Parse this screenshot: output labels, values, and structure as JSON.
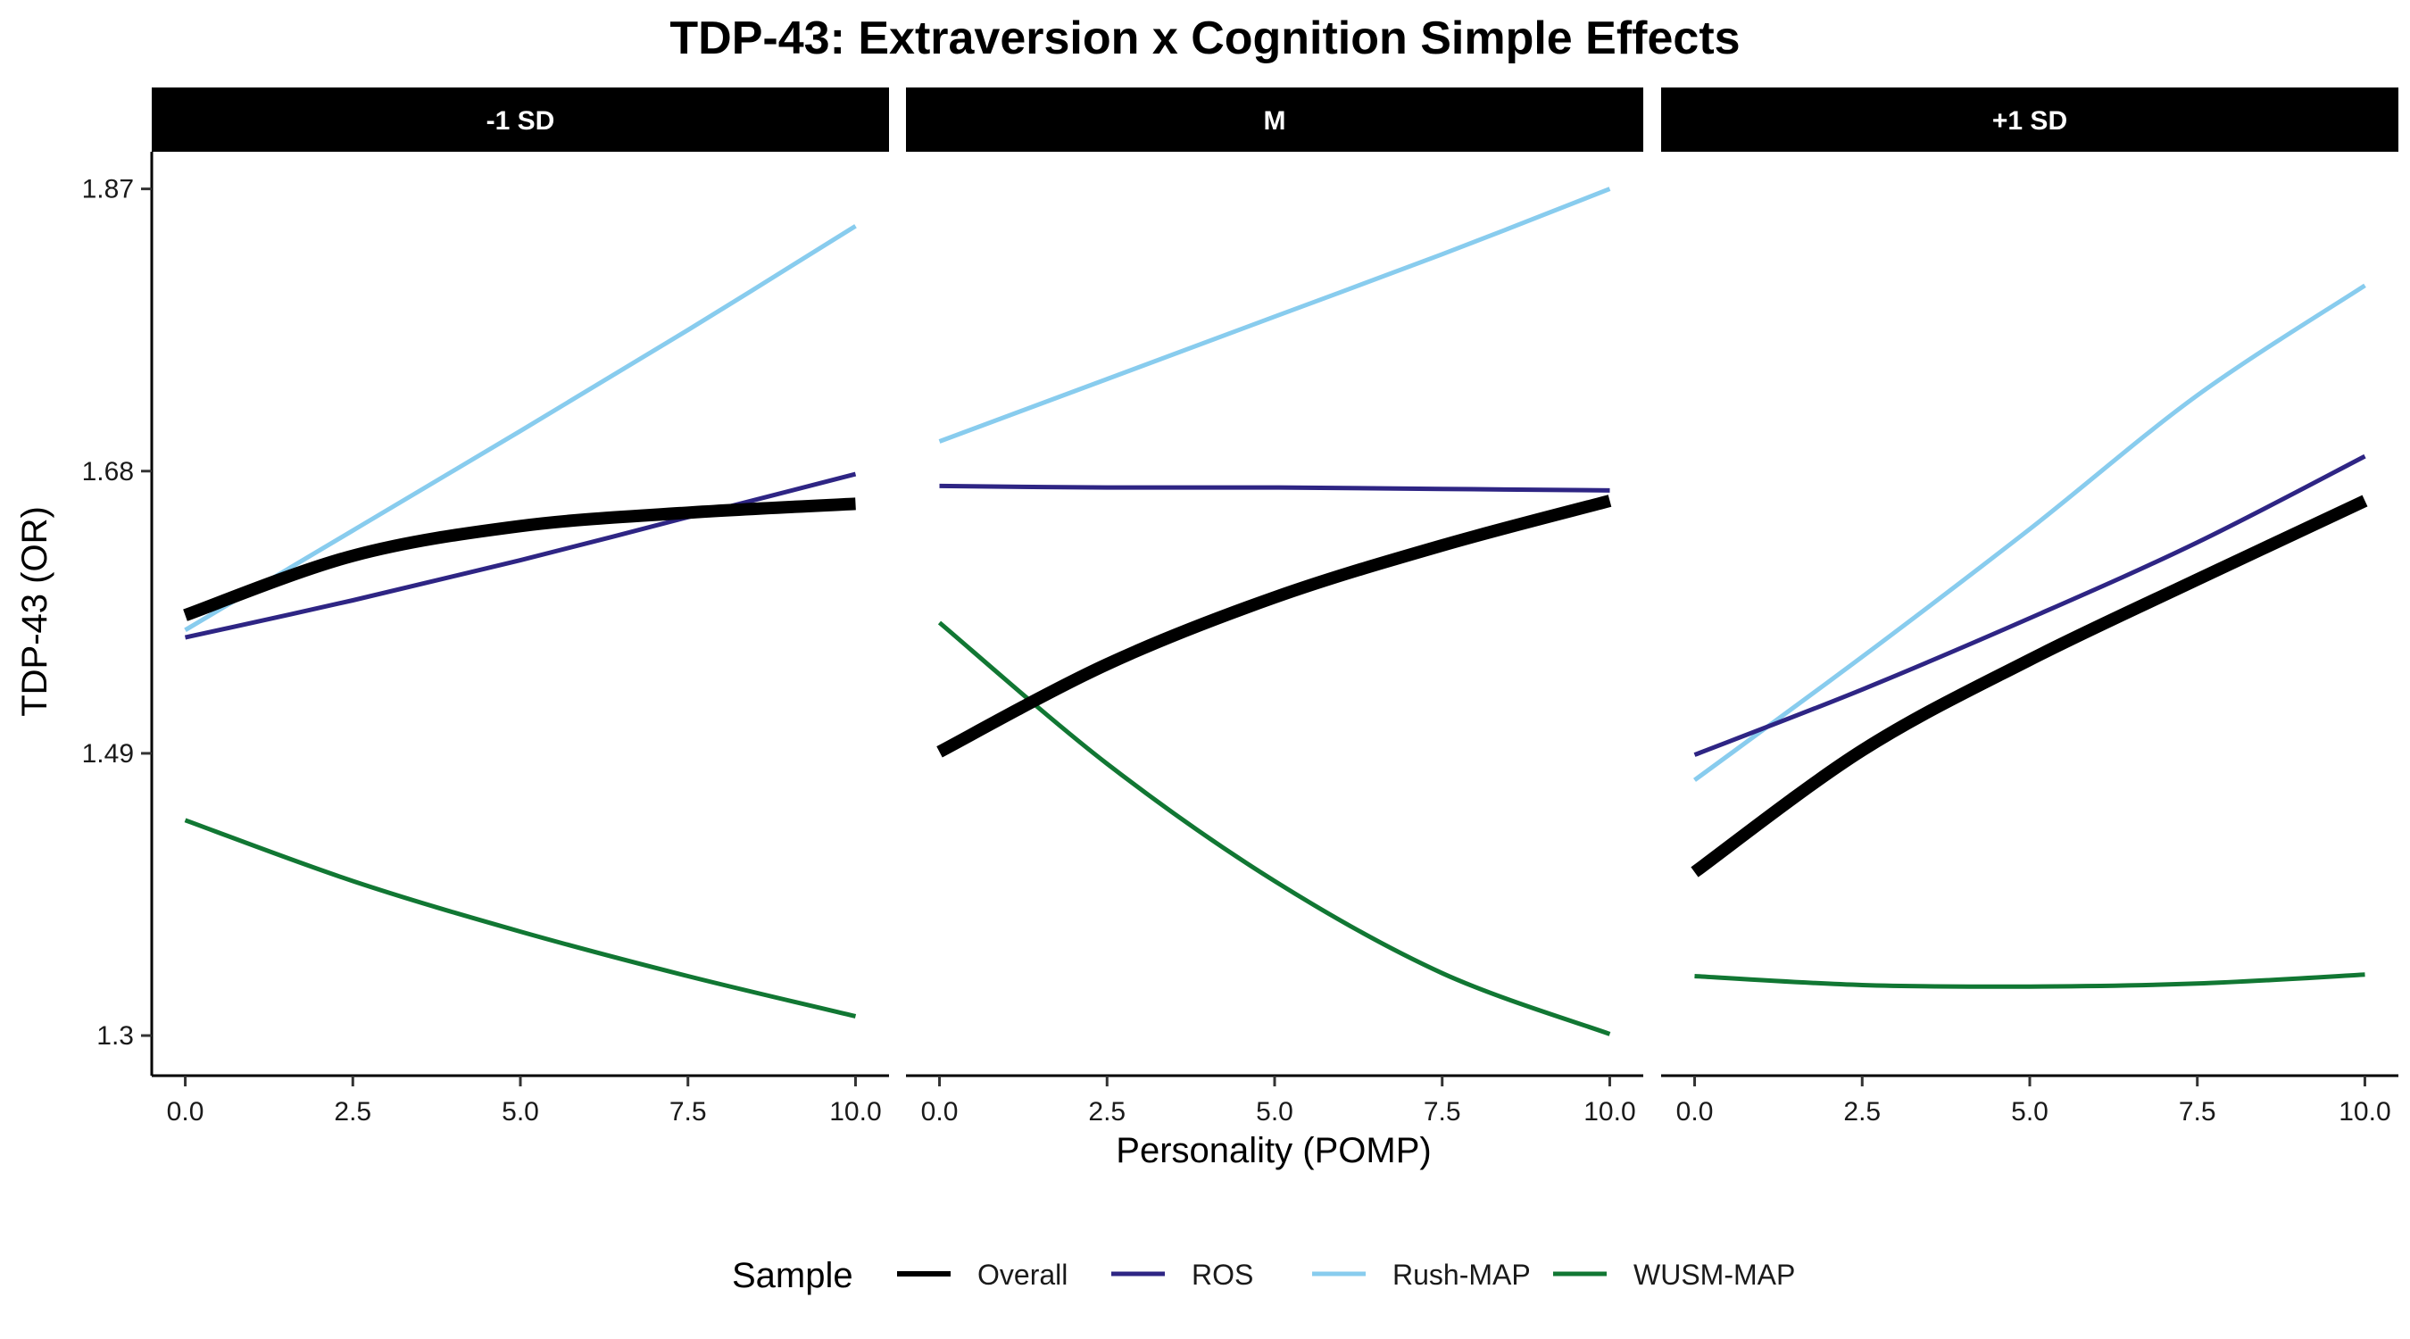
{
  "chart_data": {
    "type": "line",
    "title": "TDP-43: Extraversion x Cognition Simple Effects",
    "xlabel": "Personality (POMP)",
    "ylabel": "TDP-43 (OR)",
    "xlim": [
      -0.5,
      10.5
    ],
    "ylim": [
      1.273,
      1.895
    ],
    "x_ticks": [
      0,
      2.5,
      5,
      7.5,
      10
    ],
    "x_tick_labels": [
      "0.0",
      "2.5",
      "5.0",
      "7.5",
      "10.0"
    ],
    "y_ticks": [
      1.3,
      1.49,
      1.68,
      1.87
    ],
    "y_tick_labels": [
      "1.3",
      "1.49",
      "1.68",
      "1.87"
    ],
    "legend": {
      "title": "Sample",
      "position": "bottom"
    },
    "grid": false,
    "x": [
      0,
      2.5,
      5,
      7.5,
      10
    ],
    "panels": [
      {
        "label": "-1 SD",
        "series": [
          {
            "name": "Overall",
            "color": "#000000",
            "width": 14,
            "values": [
              1.583,
              1.623,
              1.643,
              1.652,
              1.658
            ]
          },
          {
            "name": "ROS",
            "color": "#2e2584",
            "width": 5,
            "values": [
              1.568,
              1.593,
              1.62,
              1.649,
              1.678
            ]
          },
          {
            "name": "Rush-MAP",
            "color": "#88ccee",
            "width": 5,
            "values": [
              1.573,
              1.64,
              1.707,
              1.775,
              1.845
            ]
          },
          {
            "name": "WUSM-MAP",
            "color": "#117733",
            "width": 5,
            "values": [
              1.445,
              1.404,
              1.37,
              1.34,
              1.313
            ]
          }
        ]
      },
      {
        "label": "M",
        "series": [
          {
            "name": "Overall",
            "color": "#000000",
            "width": 14,
            "values": [
              1.491,
              1.55,
              1.595,
              1.63,
              1.66
            ]
          },
          {
            "name": "ROS",
            "color": "#2e2584",
            "width": 5,
            "values": [
              1.67,
              1.669,
              1.669,
              1.668,
              1.667
            ]
          },
          {
            "name": "Rush-MAP",
            "color": "#88ccee",
            "width": 5,
            "values": [
              1.7,
              1.742,
              1.784,
              1.826,
              1.87
            ]
          },
          {
            "name": "WUSM-MAP",
            "color": "#117733",
            "width": 5,
            "values": [
              1.578,
              1.483,
              1.404,
              1.342,
              1.301
            ]
          }
        ]
      },
      {
        "label": "+1 SD",
        "series": [
          {
            "name": "Overall",
            "color": "#000000",
            "width": 14,
            "values": [
              1.41,
              1.492,
              1.553,
              1.607,
              1.66
            ]
          },
          {
            "name": "ROS",
            "color": "#2e2584",
            "width": 5,
            "values": [
              1.489,
              1.533,
              1.581,
              1.632,
              1.69
            ]
          },
          {
            "name": "Rush-MAP",
            "color": "#88ccee",
            "width": 5,
            "values": [
              1.472,
              1.555,
              1.641,
              1.731,
              1.805
            ]
          },
          {
            "name": "WUSM-MAP",
            "color": "#117733",
            "width": 5,
            "values": [
              1.34,
              1.334,
              1.333,
              1.335,
              1.341
            ]
          }
        ]
      }
    ]
  }
}
